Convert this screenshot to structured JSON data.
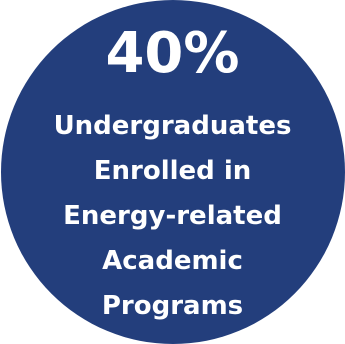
{
  "stat": {
    "figure": "40%",
    "caption_lines": [
      "Undergraduates",
      "Enrolled in",
      "Energy-related",
      "Academic",
      "Programs"
    ]
  },
  "colors": {
    "circle_fill": "#233e7c",
    "text": "#ffffff",
    "background": "#ffffff"
  }
}
